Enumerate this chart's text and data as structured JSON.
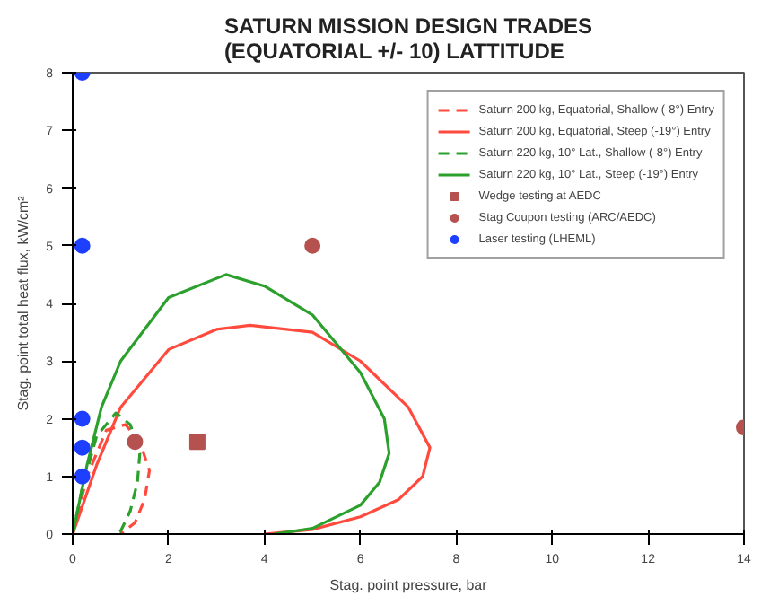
{
  "chart_data": {
    "type": "line",
    "title": "SATURN MISSION DESIGN TRADES\n(EQUATORIAL +/- 10) LATTITUDE",
    "xlabel": "Stag. point pressure, bar",
    "ylabel": "Stag. point total heat flux, kW/cm²",
    "xlim": [
      0,
      14
    ],
    "ylim": [
      0,
      8
    ],
    "xticks": [
      0,
      2,
      4,
      6,
      8,
      10,
      12,
      14
    ],
    "yticks": [
      0,
      1,
      2,
      3,
      4,
      5,
      6,
      7,
      8
    ],
    "grid": false,
    "legend": "top right",
    "series": [
      {
        "name": "Saturn 200 kg, Equatorial, Shallow (-8°) Entry",
        "line_style": "dashed",
        "color": "#ff4a3d",
        "x": [
          0,
          0.3,
          0.7,
          1.1,
          1.4,
          1.6,
          1.5,
          1.3,
          1.0
        ],
        "values": [
          0,
          1.0,
          1.8,
          1.9,
          1.6,
          1.1,
          0.6,
          0.2,
          0
        ]
      },
      {
        "name": "Saturn 200 kg, Equatorial, Steep (-19°) Entry",
        "line_style": "solid",
        "color": "#ff4a3d",
        "x": [
          0,
          0.5,
          1,
          2,
          3,
          3.7,
          5,
          6,
          7,
          7.45,
          7.3,
          6.8,
          6,
          5,
          4
        ],
        "values": [
          0,
          1.2,
          2.2,
          3.2,
          3.55,
          3.62,
          3.5,
          3.0,
          2.2,
          1.5,
          1.0,
          0.6,
          0.3,
          0.08,
          0
        ]
      },
      {
        "name": "Saturn 220 kg, 10° Lat., Shallow (-8°) Entry",
        "line_style": "dashed",
        "color": "#2ca02c",
        "x": [
          0,
          0.2,
          0.5,
          0.9,
          1.2,
          1.4,
          1.35,
          1.2,
          1.0,
          0.9
        ],
        "values": [
          0,
          0.8,
          1.7,
          2.1,
          1.9,
          1.4,
          0.9,
          0.4,
          0.05,
          0
        ]
      },
      {
        "name": "Saturn 220 kg, 10° Lat., Steep (-19°) Entry",
        "line_style": "solid",
        "color": "#2ca02c",
        "x": [
          0,
          0.3,
          0.6,
          1,
          2,
          3.2,
          4,
          5,
          6,
          6.5,
          6.6,
          6.4,
          6,
          5,
          4.2
        ],
        "values": [
          0,
          1.2,
          2.2,
          3.0,
          4.1,
          4.5,
          4.3,
          3.8,
          2.8,
          2.0,
          1.4,
          0.9,
          0.5,
          0.1,
          0
        ]
      },
      {
        "name": "Wedge testing at AEDC",
        "type": "scatter",
        "marker": "square",
        "color": "#b5524f",
        "x": [
          2.6
        ],
        "values": [
          1.6
        ]
      },
      {
        "name": "Stag Coupon testing (ARC/AEDC)",
        "type": "scatter",
        "marker": "circle",
        "color": "#b5524f",
        "x": [
          1.3,
          5,
          14
        ],
        "values": [
          1.6,
          5,
          1.85
        ]
      },
      {
        "name": "Laser testing (LHEML)",
        "type": "scatter",
        "marker": "circle",
        "color": "#1f3fff",
        "x": [
          0.2,
          0.2,
          0.2,
          0.2,
          0.2
        ],
        "values": [
          8,
          5,
          2,
          1.5,
          1
        ]
      }
    ]
  }
}
